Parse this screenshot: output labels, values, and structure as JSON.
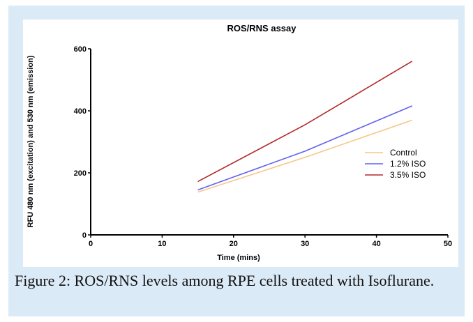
{
  "chart_data": {
    "type": "line",
    "title": "ROS/RNS assay",
    "x_label": "Time (mins)",
    "y_label": "RFU 480 nm (excitation) and 530 nm (emission)",
    "x": [
      15,
      30,
      45
    ],
    "series": [
      {
        "name": "Control",
        "color": "#f8c68a",
        "values": [
          138,
          250,
          370
        ]
      },
      {
        "name": "1.2% ISO",
        "color": "#6161ef",
        "values": [
          145,
          270,
          416
        ]
      },
      {
        "name": "3.5% ISO",
        "color": "#b32a2a",
        "values": [
          172,
          355,
          560
        ]
      }
    ],
    "xlim": [
      0,
      50
    ],
    "xticks": [
      0,
      10,
      20,
      30,
      40,
      50
    ],
    "ylim": [
      0,
      600
    ],
    "yticks": [
      0,
      200,
      400,
      600
    ],
    "legend": "right"
  },
  "caption": "Figure 2: ROS/RNS levels among RPE cells treated with Isoflurane."
}
